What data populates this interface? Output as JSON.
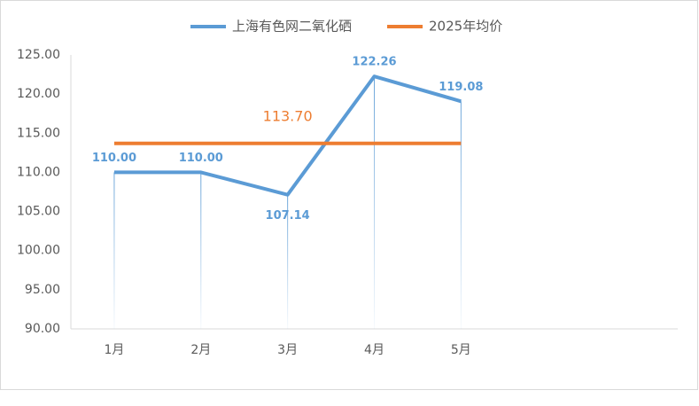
{
  "chart_data": {
    "type": "line",
    "categories": [
      "1月",
      "2月",
      "3月",
      "4月",
      "5月",
      null,
      null
    ],
    "series": [
      {
        "name": "上海有色网二氧化硒",
        "color": "#5b9bd5",
        "values": [
          110,
          110,
          107.14,
          122.26,
          119.08,
          null,
          null
        ],
        "value_labels": [
          "110.00",
          "110.00",
          "107.14",
          "122.26",
          "119.08",
          null,
          null
        ]
      },
      {
        "name": "2025年均价",
        "color": "#ed7d31",
        "values": [
          113.7,
          113.7,
          113.7,
          113.7,
          113.7,
          null,
          null
        ],
        "value_labels": [
          null,
          null,
          "113.70",
          null,
          null,
          null,
          null
        ]
      }
    ],
    "ylim": [
      90,
      125
    ],
    "yticks": [
      {
        "value": 90,
        "label": "90.00"
      },
      {
        "value": 95,
        "label": "95.00"
      },
      {
        "value": 100,
        "label": "100.00"
      },
      {
        "value": 105,
        "label": "105.00"
      },
      {
        "value": 110,
        "label": "110.00"
      },
      {
        "value": 115,
        "label": "115.00"
      },
      {
        "value": 120,
        "label": "120.00"
      },
      {
        "value": 125,
        "label": "125.00"
      }
    ],
    "grid": false,
    "legend": "top"
  }
}
